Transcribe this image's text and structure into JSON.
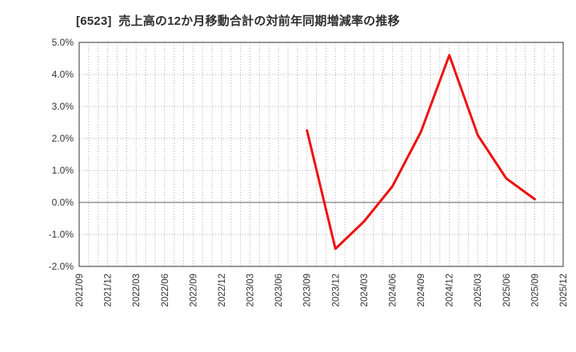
{
  "chart_data": {
    "type": "line",
    "title": "[6523]  売上高の12か月移動合計の対前年同期増減率の推移",
    "xlabel": "",
    "ylabel": "",
    "ylim": [
      -2.0,
      5.0
    ],
    "y_tick_labels": [
      "5.0%",
      "4.0%",
      "3.0%",
      "2.0%",
      "1.0%",
      "0.0%",
      "-1.0%",
      "-2.0%"
    ],
    "y_tick_values": [
      5,
      4,
      3,
      2,
      1,
      0,
      -1,
      -2
    ],
    "x_axis_start": "2021/09",
    "x_axis_end": "2025/12",
    "x_axis_total_months": 51,
    "x_tick_labels": [
      "2021/09",
      "2021/12",
      "2022/03",
      "2022/06",
      "2022/09",
      "2022/12",
      "2023/03",
      "2023/06",
      "2023/09",
      "2023/12",
      "2024/03",
      "2024/06",
      "2024/09",
      "2024/12",
      "2025/03",
      "2025/06",
      "2025/09",
      "2025/12"
    ],
    "grid": "dotted vertical line every month, dotted horizontal line every 1%, solid line at 0%",
    "legend": "none",
    "series": [
      {
        "name": "対前年同期増減率",
        "color": "#ee1111",
        "points": [
          [
            "2023/09",
            2.25
          ],
          [
            "2023/12",
            -1.45
          ],
          [
            "2024/03",
            -0.6
          ],
          [
            "2024/06",
            0.5
          ],
          [
            "2024/09",
            2.2
          ],
          [
            "2024/12",
            4.6
          ],
          [
            "2025/03",
            2.1
          ],
          [
            "2025/06",
            0.75
          ],
          [
            "2025/09",
            0.1
          ]
        ]
      }
    ]
  }
}
